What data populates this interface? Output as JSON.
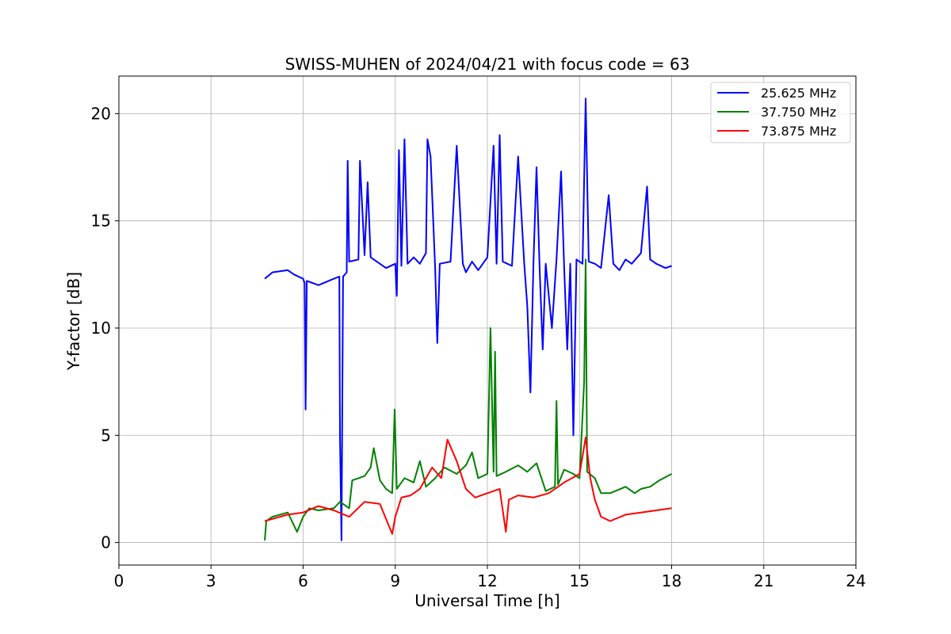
{
  "chart_data": {
    "type": "line",
    "title": "SWISS-MUHEN of 2024/04/21 with focus code = 63",
    "xlabel": "Universal Time [h]",
    "ylabel": "Y-factor [dB]",
    "xlim": [
      0,
      24
    ],
    "ylim": [
      -1.05,
      21.75
    ],
    "x_ticks": [
      0,
      3,
      6,
      9,
      12,
      15,
      18,
      21,
      24
    ],
    "y_ticks": [
      0,
      5,
      10,
      15,
      20
    ],
    "x_tick_labels": [
      "0",
      "3",
      "6",
      "9",
      "12",
      "15",
      "18",
      "21",
      "24"
    ],
    "y_tick_labels": [
      "0",
      "5",
      "10",
      "15",
      "20"
    ],
    "grid": true,
    "legend_position": "top-right",
    "series": [
      {
        "name": "25.625 MHz",
        "color": "#0000ff",
        "points": [
          [
            4.75,
            12.3
          ],
          [
            5.0,
            12.6
          ],
          [
            5.5,
            12.7
          ],
          [
            5.7,
            12.5
          ],
          [
            6.0,
            12.3
          ],
          [
            6.05,
            12.1
          ],
          [
            6.08,
            6.2
          ],
          [
            6.12,
            12.2
          ],
          [
            6.5,
            12.0
          ],
          [
            7.0,
            12.3
          ],
          [
            7.18,
            12.4
          ],
          [
            7.2,
            5.0
          ],
          [
            7.25,
            0.1
          ],
          [
            7.3,
            12.4
          ],
          [
            7.42,
            12.6
          ],
          [
            7.45,
            17.8
          ],
          [
            7.5,
            13.1
          ],
          [
            7.8,
            13.2
          ],
          [
            7.85,
            17.8
          ],
          [
            8.0,
            13.4
          ],
          [
            8.1,
            16.8
          ],
          [
            8.2,
            13.3
          ],
          [
            8.5,
            13.0
          ],
          [
            8.7,
            12.8
          ],
          [
            9.0,
            13.0
          ],
          [
            9.05,
            11.5
          ],
          [
            9.12,
            18.3
          ],
          [
            9.2,
            12.9
          ],
          [
            9.3,
            18.8
          ],
          [
            9.4,
            13.0
          ],
          [
            9.6,
            13.3
          ],
          [
            9.8,
            13.0
          ],
          [
            10.0,
            13.5
          ],
          [
            10.05,
            18.8
          ],
          [
            10.15,
            18.0
          ],
          [
            10.3,
            12.8
          ],
          [
            10.37,
            9.3
          ],
          [
            10.45,
            13.0
          ],
          [
            10.8,
            13.1
          ],
          [
            11.0,
            18.5
          ],
          [
            11.2,
            13.0
          ],
          [
            11.3,
            12.6
          ],
          [
            11.5,
            13.1
          ],
          [
            11.7,
            12.7
          ],
          [
            12.0,
            13.3
          ],
          [
            12.2,
            18.5
          ],
          [
            12.3,
            13.0
          ],
          [
            12.4,
            19.0
          ],
          [
            12.5,
            13.1
          ],
          [
            12.8,
            12.9
          ],
          [
            13.0,
            18.0
          ],
          [
            13.2,
            13.0
          ],
          [
            13.3,
            11.0
          ],
          [
            13.4,
            7.0
          ],
          [
            13.5,
            13.0
          ],
          [
            13.6,
            17.5
          ],
          [
            13.7,
            12.8
          ],
          [
            13.8,
            9.0
          ],
          [
            13.9,
            13.0
          ],
          [
            14.1,
            10.0
          ],
          [
            14.25,
            13.2
          ],
          [
            14.4,
            17.3
          ],
          [
            14.5,
            12.8
          ],
          [
            14.6,
            9.0
          ],
          [
            14.7,
            13.0
          ],
          [
            14.8,
            5.0
          ],
          [
            14.9,
            13.2
          ],
          [
            15.1,
            13.0
          ],
          [
            15.2,
            20.7
          ],
          [
            15.3,
            13.1
          ],
          [
            15.5,
            13.0
          ],
          [
            15.7,
            12.8
          ],
          [
            15.95,
            16.2
          ],
          [
            16.1,
            13.0
          ],
          [
            16.3,
            12.7
          ],
          [
            16.5,
            13.2
          ],
          [
            16.7,
            13.0
          ],
          [
            17.0,
            13.5
          ],
          [
            17.2,
            16.6
          ],
          [
            17.3,
            13.2
          ],
          [
            17.5,
            13.0
          ],
          [
            17.8,
            12.8
          ],
          [
            18.0,
            12.9
          ]
        ]
      },
      {
        "name": "37.750 MHz",
        "color": "#008000",
        "points": [
          [
            4.75,
            0.1
          ],
          [
            4.8,
            1.0
          ],
          [
            5.0,
            1.2
          ],
          [
            5.5,
            1.4
          ],
          [
            5.8,
            0.5
          ],
          [
            6.0,
            1.2
          ],
          [
            6.2,
            1.6
          ],
          [
            6.5,
            1.5
          ],
          [
            7.0,
            1.6
          ],
          [
            7.2,
            1.9
          ],
          [
            7.5,
            1.6
          ],
          [
            7.6,
            2.9
          ],
          [
            7.8,
            3.0
          ],
          [
            8.0,
            3.1
          ],
          [
            8.2,
            3.5
          ],
          [
            8.3,
            4.4
          ],
          [
            8.5,
            2.9
          ],
          [
            8.7,
            2.5
          ],
          [
            8.9,
            2.3
          ],
          [
            8.98,
            6.2
          ],
          [
            9.05,
            2.5
          ],
          [
            9.3,
            3.0
          ],
          [
            9.6,
            2.8
          ],
          [
            9.8,
            3.8
          ],
          [
            10.0,
            2.6
          ],
          [
            10.3,
            3.0
          ],
          [
            10.6,
            3.5
          ],
          [
            11.0,
            3.2
          ],
          [
            11.3,
            3.6
          ],
          [
            11.5,
            4.2
          ],
          [
            11.7,
            3.0
          ],
          [
            12.0,
            3.2
          ],
          [
            12.1,
            10.0
          ],
          [
            12.2,
            3.3
          ],
          [
            12.25,
            8.9
          ],
          [
            12.3,
            3.1
          ],
          [
            12.6,
            3.3
          ],
          [
            13.0,
            3.6
          ],
          [
            13.3,
            3.3
          ],
          [
            13.6,
            3.7
          ],
          [
            13.9,
            2.4
          ],
          [
            14.2,
            2.6
          ],
          [
            14.25,
            6.6
          ],
          [
            14.3,
            2.7
          ],
          [
            14.5,
            3.4
          ],
          [
            14.8,
            3.2
          ],
          [
            15.0,
            3.0
          ],
          [
            15.15,
            7.5
          ],
          [
            15.2,
            13.2
          ],
          [
            15.25,
            3.3
          ],
          [
            15.5,
            3.0
          ],
          [
            15.7,
            2.3
          ],
          [
            16.0,
            2.3
          ],
          [
            16.5,
            2.6
          ],
          [
            16.8,
            2.3
          ],
          [
            17.0,
            2.5
          ],
          [
            17.3,
            2.6
          ],
          [
            17.6,
            2.9
          ],
          [
            18.0,
            3.2
          ]
        ]
      },
      {
        "name": "73.875 MHz",
        "color": "#ff0000",
        "points": [
          [
            4.75,
            1.0
          ],
          [
            5.0,
            1.1
          ],
          [
            5.5,
            1.3
          ],
          [
            6.0,
            1.4
          ],
          [
            6.5,
            1.7
          ],
          [
            7.0,
            1.5
          ],
          [
            7.5,
            1.2
          ],
          [
            8.0,
            1.9
          ],
          [
            8.5,
            1.8
          ],
          [
            8.9,
            0.4
          ],
          [
            9.0,
            1.2
          ],
          [
            9.2,
            2.1
          ],
          [
            9.5,
            2.2
          ],
          [
            9.8,
            2.5
          ],
          [
            10.0,
            3.0
          ],
          [
            10.2,
            3.5
          ],
          [
            10.5,
            3.0
          ],
          [
            10.7,
            4.8
          ],
          [
            11.0,
            3.8
          ],
          [
            11.3,
            2.5
          ],
          [
            11.6,
            2.1
          ],
          [
            12.0,
            2.3
          ],
          [
            12.4,
            2.5
          ],
          [
            12.6,
            0.5
          ],
          [
            12.7,
            2.0
          ],
          [
            13.0,
            2.2
          ],
          [
            13.5,
            2.1
          ],
          [
            14.0,
            2.3
          ],
          [
            14.5,
            2.8
          ],
          [
            15.0,
            3.2
          ],
          [
            15.2,
            4.9
          ],
          [
            15.35,
            3.0
          ],
          [
            15.5,
            2.0
          ],
          [
            15.7,
            1.2
          ],
          [
            16.0,
            1.0
          ],
          [
            16.5,
            1.3
          ],
          [
            17.0,
            1.4
          ],
          [
            17.5,
            1.5
          ],
          [
            18.0,
            1.6
          ]
        ]
      }
    ]
  }
}
